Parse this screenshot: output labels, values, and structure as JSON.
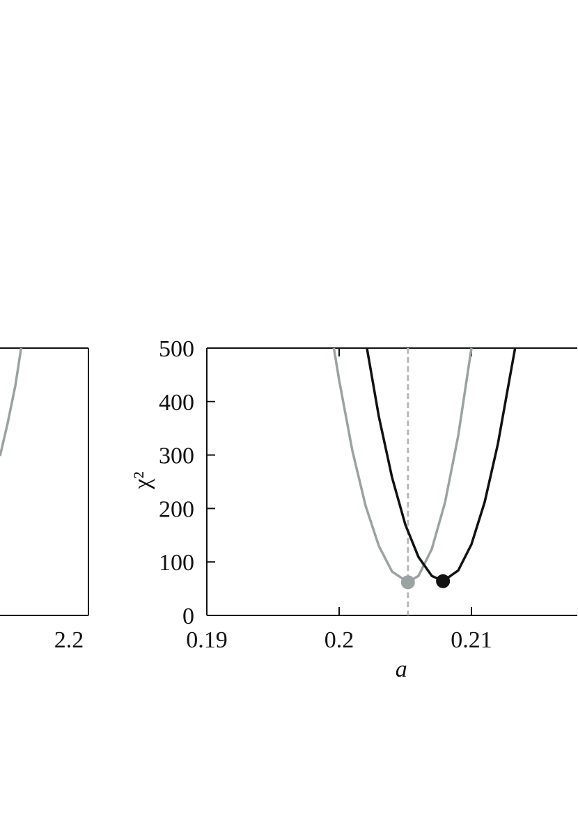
{
  "chart_data": [
    {
      "type": "line",
      "xlim": [
        2.154,
        2.2
      ],
      "ylim": [
        0,
        500
      ],
      "xticks": [
        2.2
      ],
      "yticks": [],
      "series": [
        {
          "color": "#9aa3a1",
          "x": [
            2.154,
            2.158,
            2.162,
            2.165
          ],
          "values": [
            298,
            360,
            430,
            500
          ]
        }
      ]
    },
    {
      "type": "line",
      "xlabel": "a",
      "ylabel": "χ²",
      "xlim": [
        0.19,
        0.218
      ],
      "ylim": [
        0,
        500
      ],
      "xticks": [
        0.19,
        0.2,
        0.21
      ],
      "yticks": [
        0,
        100,
        200,
        300,
        400,
        500
      ],
      "vline": {
        "x": 0.2052,
        "color": "#b5bab8"
      },
      "series": [
        {
          "color": "#9aa3a1",
          "x": [
            0.1996,
            0.2,
            0.201,
            0.202,
            0.203,
            0.204,
            0.2052,
            0.206,
            0.207,
            0.208,
            0.209,
            0.21
          ],
          "values": [
            500,
            440,
            308,
            205,
            130,
            82,
            62,
            74,
            124,
            211,
            336,
            500
          ],
          "minimum": {
            "x": 0.2052,
            "y": 62
          }
        },
        {
          "color": "#111111",
          "x": [
            0.2021,
            0.203,
            0.204,
            0.205,
            0.206,
            0.207,
            0.20785,
            0.209,
            0.21,
            0.211,
            0.212,
            0.213,
            0.2133
          ],
          "values": [
            500,
            372,
            258,
            170,
            109,
            74,
            64,
            84,
            133,
            212,
            321,
            459,
            500
          ],
          "minimum": {
            "x": 0.20785,
            "y": 64
          }
        }
      ]
    }
  ]
}
